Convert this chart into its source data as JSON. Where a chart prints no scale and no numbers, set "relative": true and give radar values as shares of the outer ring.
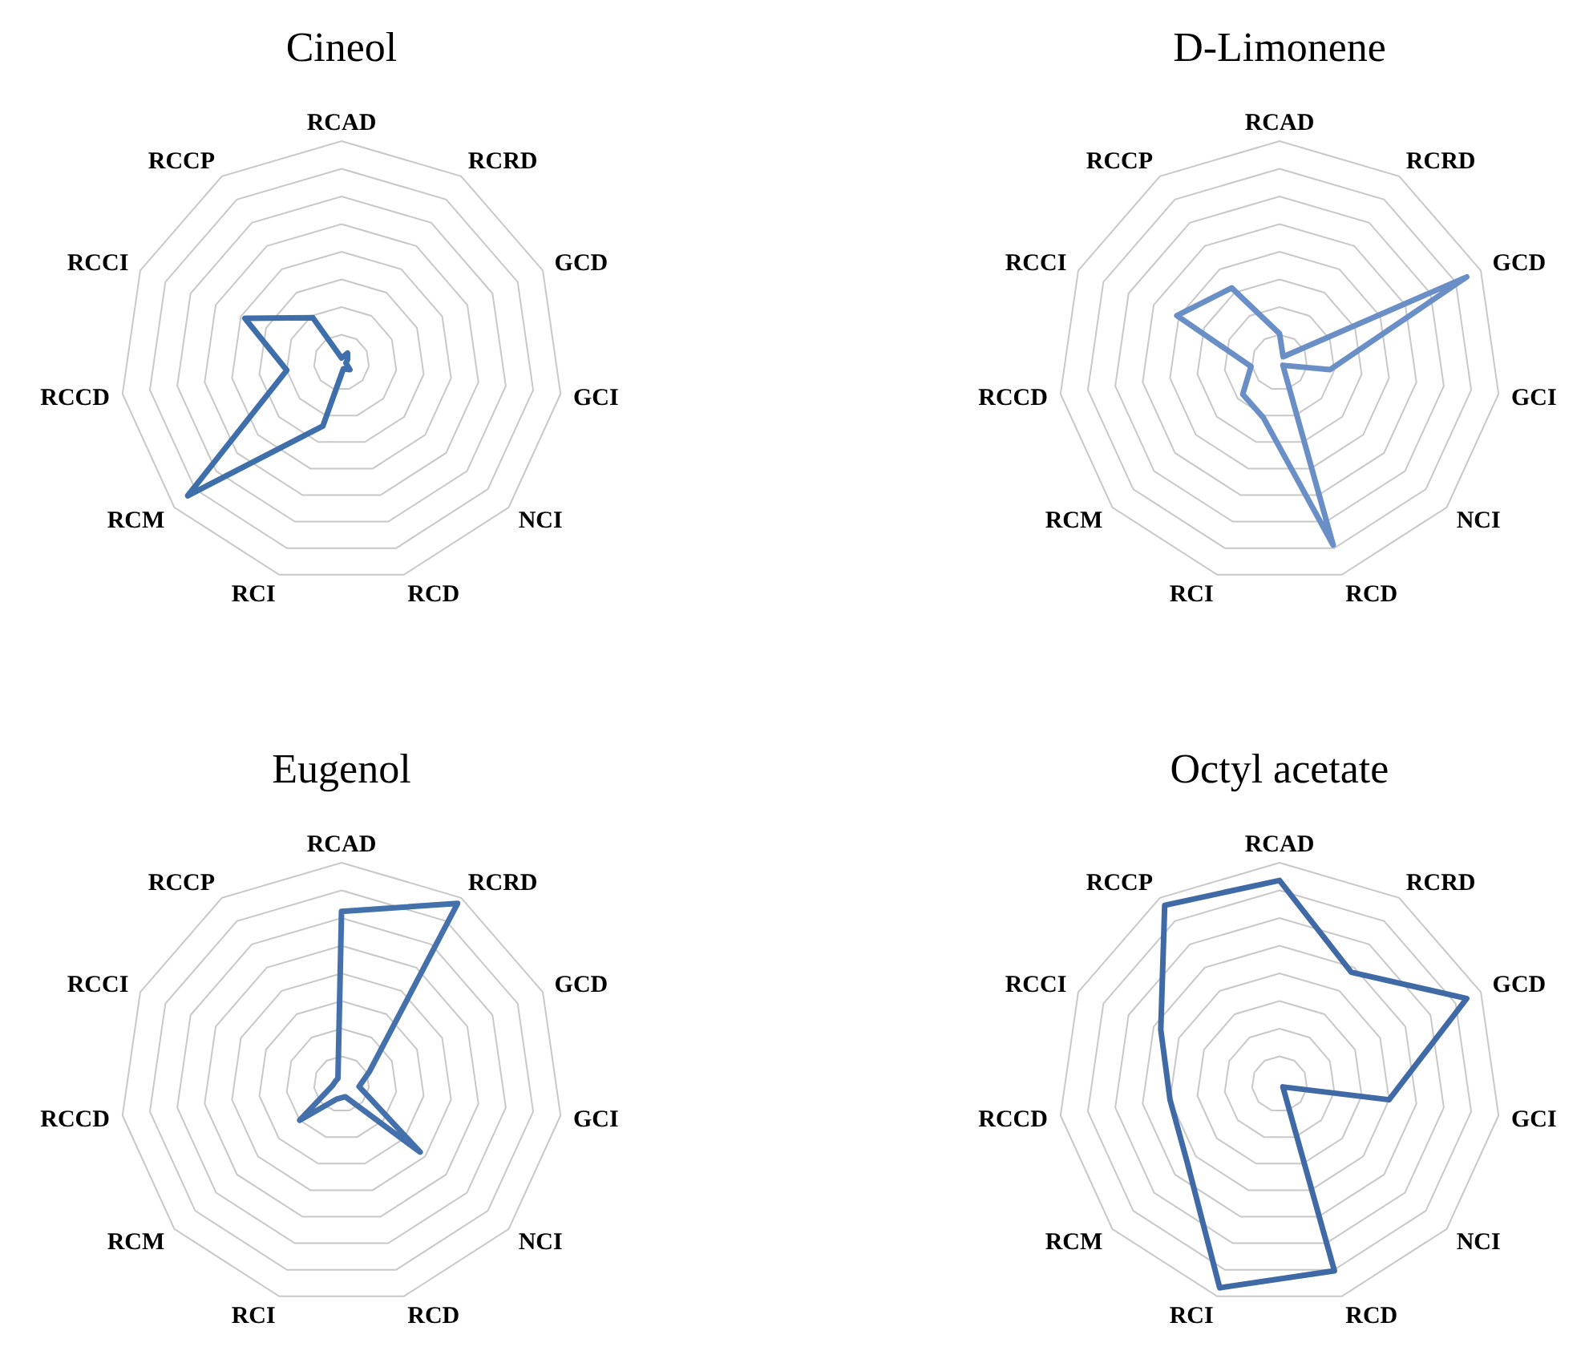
{
  "chart_data": [
    {
      "type": "radar",
      "title": "Cineol",
      "relative": true,
      "grid": true,
      "marker": "none",
      "line_style": "solid",
      "categories": [
        "RCAD",
        "RCRD",
        "GCD",
        "GCI",
        "NCI",
        "RCD",
        "RCI",
        "RCM",
        "RCCD",
        "RCCI",
        "RCCP"
      ],
      "series": [
        {
          "color": "#3f6faa",
          "values": [
            0.02,
            0.05,
            0.03,
            0.02,
            0.05,
            0.03,
            0.3,
            0.92,
            0.25,
            0.48,
            0.24
          ]
        }
      ]
    },
    {
      "type": "radar",
      "title": "D-Limonene",
      "relative": true,
      "grid": true,
      "marker": "none",
      "line_style": "solid",
      "categories": [
        "RCAD",
        "RCRD",
        "GCD",
        "GCI",
        "NCI",
        "RCD",
        "RCI",
        "RCM",
        "RCCD",
        "RCCI",
        "RCCP"
      ],
      "series": [
        {
          "color": "#6a8fc7",
          "values": [
            0.13,
            0.03,
            0.93,
            0.23,
            0.02,
            0.86,
            0.26,
            0.22,
            0.13,
            0.51,
            0.4
          ]
        }
      ]
    },
    {
      "type": "radar",
      "title": "Eugenol",
      "relative": true,
      "grid": true,
      "marker": "none",
      "line_style": "solid",
      "categories": [
        "RCAD",
        "RCRD",
        "GCD",
        "GCI",
        "NCI",
        "RCD",
        "RCI",
        "RCM",
        "RCCD",
        "RCCI",
        "RCCP"
      ],
      "series": [
        {
          "color": "#4470ab",
          "values": [
            0.78,
            0.97,
            0.14,
            0.08,
            0.47,
            0.06,
            0.07,
            0.25,
            0.04,
            0.03,
            0.03
          ]
        }
      ]
    },
    {
      "type": "radar",
      "title": "Octyl acetate",
      "relative": true,
      "grid": true,
      "marker": "none",
      "line_style": "solid",
      "categories": [
        "RCAD",
        "RCRD",
        "GCD",
        "GCI",
        "NCI",
        "RCD",
        "RCI",
        "RCM",
        "RCCD",
        "RCCI",
        "RCCP"
      ],
      "series": [
        {
          "color": "#3f6aa6",
          "values": [
            0.92,
            0.6,
            0.93,
            0.5,
            0.02,
            0.88,
            0.96,
            0.55,
            0.5,
            0.59,
            0.96
          ]
        }
      ]
    }
  ]
}
